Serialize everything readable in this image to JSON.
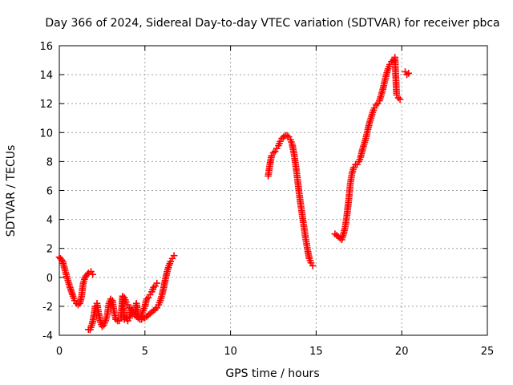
{
  "chart_data": {
    "type": "scatter",
    "title": "Day 366 of 2024, Sidereal Day-to-day VTEC variation (SDTVAR) for receiver pbca",
    "xlabel": "GPS time / hours",
    "ylabel": "SDTVAR / TECUs",
    "xlim": [
      0,
      25
    ],
    "ylim": [
      -4,
      16
    ],
    "xticks": [
      0,
      5,
      10,
      15,
      20,
      25
    ],
    "yticks": [
      -4,
      -2,
      0,
      2,
      4,
      6,
      8,
      10,
      12,
      14,
      16
    ],
    "xtick_labels": [
      "0",
      "5",
      "10",
      "15",
      "20",
      "25"
    ],
    "ytick_labels": [
      "-4",
      "-2",
      "0",
      "2",
      "4",
      "6",
      "8",
      "10",
      "12",
      "14",
      "16"
    ],
    "grid": true,
    "marker": "plus",
    "color": "#ff0000",
    "series": [
      {
        "name": "segment-1",
        "x": [
          0.0,
          0.2,
          0.4,
          0.6,
          0.8,
          0.9,
          1.0,
          1.1,
          1.2,
          1.3,
          1.4,
          1.5,
          1.7,
          1.85,
          1.95
        ],
        "y": [
          1.4,
          1.1,
          0.2,
          -0.6,
          -1.3,
          -1.6,
          -1.8,
          -1.9,
          -1.8,
          -1.3,
          -0.4,
          0.0,
          0.3,
          0.4,
          0.2
        ]
      },
      {
        "name": "segment-2",
        "x": [
          1.7,
          1.8,
          1.9,
          2.0,
          2.1,
          2.2,
          2.3,
          2.4,
          2.5,
          2.6,
          2.7,
          2.8,
          2.9,
          3.0,
          3.1,
          3.2,
          3.3,
          3.4,
          3.5,
          3.6,
          3.7,
          3.8,
          3.9,
          4.0,
          4.1,
          4.2,
          4.3,
          4.4,
          4.5,
          4.6,
          4.7,
          4.8,
          4.9,
          5.0,
          5.1,
          5.2,
          5.3,
          5.4,
          5.5,
          5.6,
          5.7
        ],
        "y": [
          -3.6,
          -3.6,
          -3.3,
          -2.8,
          -2.0,
          -1.8,
          -2.5,
          -3.1,
          -3.4,
          -3.3,
          -3.0,
          -2.6,
          -1.8,
          -1.5,
          -1.6,
          -2.4,
          -2.9,
          -3.0,
          -3.0,
          -2.8,
          -1.3,
          -2.9,
          -2.7,
          -3.0,
          -2.8,
          -2.2,
          -2.4,
          -2.6,
          -1.8,
          -2.6,
          -2.7,
          -2.6,
          -2.3,
          -2.0,
          -1.5,
          -1.4,
          -1.2,
          -1.0,
          -0.7,
          -0.6,
          -0.4
        ]
      },
      {
        "name": "segment-3",
        "x": [
          3.8,
          3.9,
          4.0,
          4.1,
          4.2,
          4.3,
          4.4,
          4.5,
          4.6,
          4.7,
          4.8,
          4.9,
          5.0,
          5.1,
          5.2,
          5.3,
          5.4,
          5.5,
          5.6,
          5.7,
          5.8,
          5.9,
          6.0,
          6.1,
          6.2,
          6.3,
          6.4,
          6.5,
          6.6,
          6.7
        ],
        "y": [
          -1.4,
          -1.7,
          -1.9,
          -2.1,
          -2.2,
          -2.3,
          -2.5,
          -2.7,
          -2.8,
          -2.9,
          -2.9,
          -2.8,
          -2.8,
          -2.7,
          -2.6,
          -2.5,
          -2.4,
          -2.3,
          -2.2,
          -2.1,
          -1.9,
          -1.6,
          -1.2,
          -0.7,
          -0.1,
          0.4,
          0.8,
          1.1,
          1.3,
          1.5
        ]
      },
      {
        "name": "segment-4",
        "x": [
          12.2,
          12.3,
          12.4,
          12.5,
          12.6,
          12.7,
          12.8,
          12.9,
          13.0,
          13.1,
          13.2,
          13.3,
          13.4,
          13.5,
          13.6,
          13.7,
          13.8,
          13.9,
          14.0,
          14.1,
          14.2,
          14.3,
          14.4,
          14.5,
          14.6,
          14.7,
          14.8
        ],
        "y": [
          7.0,
          7.8,
          8.4,
          8.6,
          8.7,
          8.9,
          9.1,
          9.4,
          9.6,
          9.7,
          9.8,
          9.8,
          9.7,
          9.5,
          9.2,
          8.6,
          7.8,
          6.9,
          5.9,
          5.0,
          4.2,
          3.4,
          2.6,
          1.9,
          1.3,
          1.0,
          0.8
        ]
      },
      {
        "name": "segment-5",
        "x": [
          16.1,
          16.2,
          16.3,
          16.4,
          16.5,
          16.6,
          16.7,
          16.8,
          16.9,
          17.0,
          17.1,
          17.2,
          17.3,
          17.4,
          17.5,
          17.6,
          17.7,
          17.8,
          17.9,
          18.0,
          18.1,
          18.2,
          18.3,
          18.4,
          18.5,
          18.6,
          18.7,
          18.8,
          18.9,
          19.0,
          19.1,
          19.2,
          19.3,
          19.4,
          19.5,
          19.6,
          19.7,
          19.8,
          19.9
        ],
        "y": [
          3.0,
          2.9,
          2.8,
          2.7,
          2.6,
          3.0,
          3.5,
          4.3,
          5.3,
          6.5,
          7.2,
          7.6,
          7.8,
          7.8,
          8.0,
          8.3,
          8.8,
          9.2,
          9.6,
          10.1,
          10.6,
          11.0,
          11.4,
          11.7,
          11.9,
          12.0,
          12.2,
          12.6,
          13.0,
          13.5,
          14.0,
          14.4,
          14.7,
          14.9,
          15.0,
          15.2,
          12.6,
          12.4,
          12.3
        ]
      },
      {
        "name": "segment-6",
        "x": [
          20.2,
          20.3,
          20.4
        ],
        "y": [
          14.2,
          14.0,
          14.1
        ]
      }
    ]
  }
}
